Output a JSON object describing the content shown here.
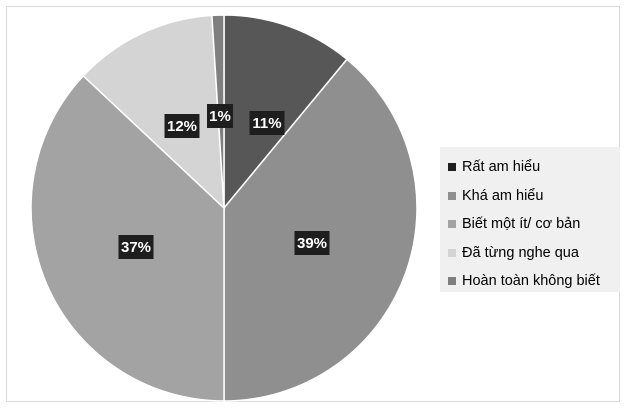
{
  "chart_data": {
    "type": "pie",
    "title": "",
    "categories": [
      "Rất am hiểu",
      "Khá am hiểu",
      "Biết một ít/ cơ bản",
      "Đã từng nghe qua",
      "Hoàn toàn không biết"
    ],
    "values": [
      11,
      39,
      37,
      12,
      1
    ],
    "data_labels": [
      "11%",
      "39%",
      "37%",
      "12%",
      "1%"
    ],
    "colors": [
      "#575757",
      "#8f8f8f",
      "#a3a3a3",
      "#d4d4d4",
      "#7f7f7f"
    ],
    "start_angle": "12 o'clock",
    "direction": "clockwise",
    "legend_position": "right",
    "label_colors": {
      "background": "#1e1e1e",
      "text": "#ffffff"
    }
  }
}
